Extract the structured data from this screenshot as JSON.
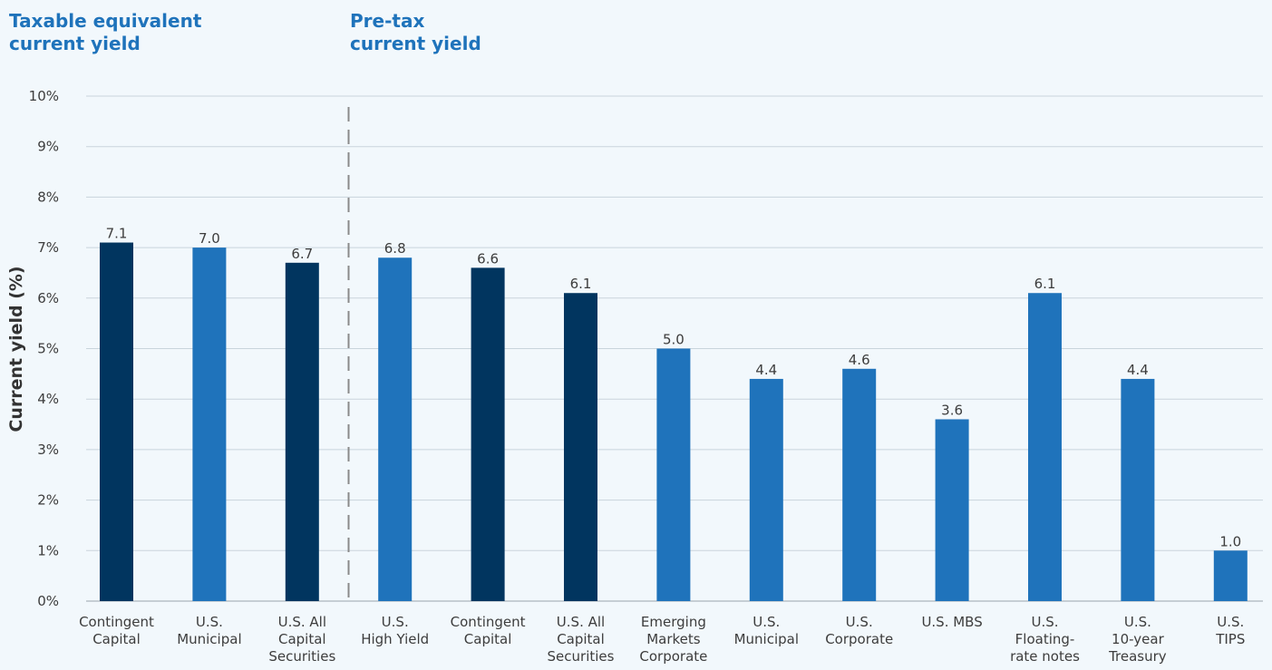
{
  "groups": {
    "taxable_label": "Taxable equivalent\ncurrent yield",
    "pretax_label": "Pre-tax\ncurrent yield"
  },
  "colors": {
    "dark_navy": "#01355f",
    "medium_blue": "#1f73bb",
    "heading_blue": "#1f73bb",
    "gridline": "#c9d4dc",
    "divider": "#8a8a8a",
    "background": "#f2f8fc"
  },
  "chart_data": {
    "type": "bar",
    "ylabel": "Current yield (%)",
    "xlabel": "",
    "ylim": [
      0,
      10
    ],
    "y_ticks": [
      "0%",
      "1%",
      "2%",
      "3%",
      "4%",
      "5%",
      "6%",
      "7%",
      "8%",
      "9%",
      "10%"
    ],
    "grid": true,
    "divider_after_index": 2,
    "categories": [
      "Contingent\nCapital",
      "U.S.\nMunicipal",
      "U.S. All\nCapital\nSecurities",
      "U.S.\nHigh Yield",
      "Contingent\nCapital",
      "U.S. All\nCapital\nSecurities",
      "Emerging\nMarkets\nCorporate",
      "U.S.\nMunicipal",
      "U.S.\nCorporate",
      "U.S. MBS",
      "U.S.\nFloating-\nrate notes",
      "U.S.\n10-year\nTreasury",
      "U.S.\nTIPS"
    ],
    "values": [
      7.1,
      7.0,
      6.7,
      6.8,
      6.6,
      6.1,
      5.0,
      4.4,
      4.6,
      3.6,
      6.1,
      4.4,
      1.0
    ],
    "value_labels": [
      "7.1",
      "7.0",
      "6.7",
      "6.8",
      "6.6",
      "6.1",
      "5.0",
      "4.4",
      "4.6",
      "3.6",
      "6.1",
      "4.4",
      "1.0"
    ],
    "bar_colors": [
      "dark_navy",
      "medium_blue",
      "dark_navy",
      "medium_blue",
      "dark_navy",
      "dark_navy",
      "medium_blue",
      "medium_blue",
      "medium_blue",
      "medium_blue",
      "medium_blue",
      "medium_blue",
      "medium_blue"
    ]
  }
}
